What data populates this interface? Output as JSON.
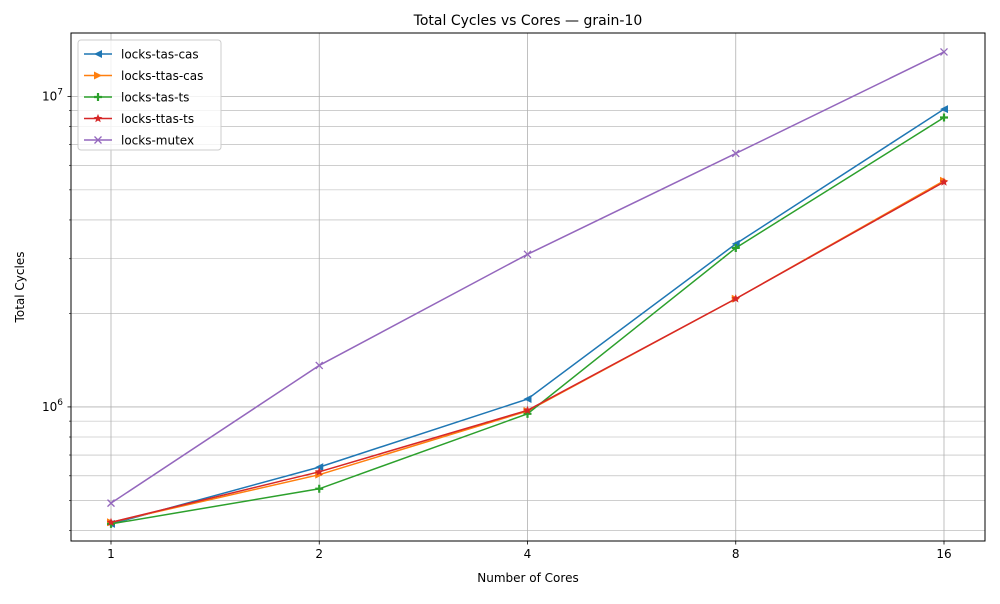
{
  "chart_data": {
    "type": "line",
    "title": "Total Cycles vs Cores — grain-10",
    "xlabel": "Number of Cores",
    "ylabel": "Total Cycles",
    "x_scale": "log2",
    "y_scale": "log10",
    "grid": true,
    "grid_minor": true,
    "legend_position": "top-left",
    "x": [
      1,
      2,
      4,
      8,
      16
    ],
    "x_ticks": [
      "1",
      "2",
      "4",
      "8",
      "16"
    ],
    "ylim": [
      370000,
      16000000
    ],
    "y_ticks": [
      {
        "value": 1000000,
        "base": "10",
        "exp": "6"
      },
      {
        "value": 10000000,
        "base": "10",
        "exp": "7"
      }
    ],
    "series": [
      {
        "name": "locks-tas-cas",
        "color": "#1f77b4",
        "marker": "triangle-left",
        "values": [
          420000,
          640000,
          1060000,
          3350000,
          9100000
        ]
      },
      {
        "name": "locks-ttas-cas",
        "color": "#ff7f0e",
        "marker": "triangle-right",
        "values": [
          425000,
          605000,
          970000,
          2230000,
          5350000
        ]
      },
      {
        "name": "locks-tas-ts",
        "color": "#2ca02c",
        "marker": "plus",
        "values": [
          420000,
          545000,
          950000,
          3250000,
          8550000
        ]
      },
      {
        "name": "locks-ttas-ts",
        "color": "#d62728",
        "marker": "star",
        "values": [
          425000,
          618000,
          975000,
          2230000,
          5300000
        ]
      },
      {
        "name": "locks-mutex",
        "color": "#9467bd",
        "marker": "x",
        "values": [
          490000,
          1360000,
          3100000,
          6550000,
          13900000
        ]
      }
    ]
  }
}
